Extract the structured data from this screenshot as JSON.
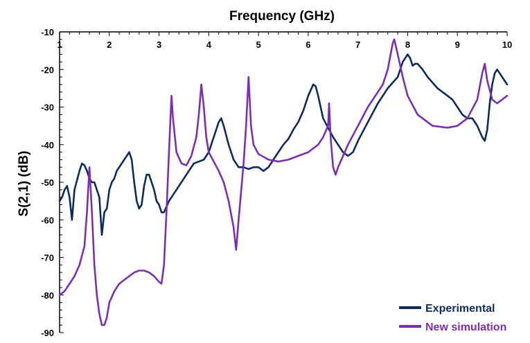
{
  "chart_data": {
    "type": "line",
    "xlabel": "Frequency (GHz)",
    "ylabel": "S(2,1) (dB)",
    "xlim": [
      1,
      10
    ],
    "ylim": [
      -90,
      -10
    ],
    "x_ticks": [
      "1",
      "2",
      "3",
      "4",
      "5",
      "6",
      "7",
      "8",
      "9",
      "10"
    ],
    "y_ticks": [
      "-10",
      "-20",
      "-30",
      "-40",
      "-50",
      "-60",
      "-70",
      "-80",
      "-90"
    ],
    "x_tick_values": [
      1,
      2,
      3,
      4,
      5,
      6,
      7,
      8,
      9,
      10
    ],
    "y_tick_values": [
      -10,
      -20,
      -30,
      -40,
      -50,
      -60,
      -70,
      -80,
      -90
    ],
    "x_axis_position": "top",
    "grid": false,
    "legend_position": "bottom-right",
    "series": [
      {
        "name": "Experimental",
        "color": "#0b2a5e",
        "points": [
          [
            1.0,
            -55
          ],
          [
            1.05,
            -54
          ],
          [
            1.1,
            -52
          ],
          [
            1.15,
            -51
          ],
          [
            1.2,
            -54
          ],
          [
            1.25,
            -60
          ],
          [
            1.3,
            -52
          ],
          [
            1.4,
            -47
          ],
          [
            1.45,
            -45
          ],
          [
            1.5,
            -45.5
          ],
          [
            1.55,
            -47
          ],
          [
            1.6,
            -49
          ],
          [
            1.65,
            -50
          ],
          [
            1.7,
            -50
          ],
          [
            1.75,
            -52
          ],
          [
            1.8,
            -54
          ],
          [
            1.85,
            -64
          ],
          [
            1.9,
            -58
          ],
          [
            1.95,
            -57
          ],
          [
            2.0,
            -52
          ],
          [
            2.05,
            -50
          ],
          [
            2.1,
            -49
          ],
          [
            2.15,
            -47
          ],
          [
            2.2,
            -46
          ],
          [
            2.3,
            -44
          ],
          [
            2.4,
            -42
          ],
          [
            2.45,
            -44
          ],
          [
            2.5,
            -50
          ],
          [
            2.55,
            -55
          ],
          [
            2.6,
            -57
          ],
          [
            2.65,
            -56
          ],
          [
            2.7,
            -51
          ],
          [
            2.75,
            -48
          ],
          [
            2.8,
            -48
          ],
          [
            2.85,
            -50
          ],
          [
            2.9,
            -52
          ],
          [
            2.95,
            -55
          ],
          [
            3.0,
            -56
          ],
          [
            3.05,
            -58
          ],
          [
            3.1,
            -58
          ],
          [
            3.2,
            -55
          ],
          [
            3.3,
            -53
          ],
          [
            3.4,
            -51
          ],
          [
            3.5,
            -49
          ],
          [
            3.6,
            -47
          ],
          [
            3.7,
            -45
          ],
          [
            3.8,
            -44.5
          ],
          [
            3.9,
            -44
          ],
          [
            4.0,
            -42
          ],
          [
            4.1,
            -38
          ],
          [
            4.2,
            -34
          ],
          [
            4.25,
            -33
          ],
          [
            4.3,
            -35
          ],
          [
            4.4,
            -40
          ],
          [
            4.5,
            -44
          ],
          [
            4.6,
            -46
          ],
          [
            4.7,
            -46
          ],
          [
            4.8,
            -46.5
          ],
          [
            4.9,
            -46
          ],
          [
            5.0,
            -46
          ],
          [
            5.1,
            -47
          ],
          [
            5.2,
            -46
          ],
          [
            5.3,
            -44
          ],
          [
            5.4,
            -42
          ],
          [
            5.5,
            -40
          ],
          [
            5.6,
            -38.5
          ],
          [
            5.7,
            -36
          ],
          [
            5.8,
            -34
          ],
          [
            5.9,
            -31
          ],
          [
            6.0,
            -27
          ],
          [
            6.1,
            -24
          ],
          [
            6.15,
            -24.5
          ],
          [
            6.2,
            -27
          ],
          [
            6.3,
            -33
          ],
          [
            6.4,
            -35.5
          ],
          [
            6.5,
            -38
          ],
          [
            6.6,
            -40
          ],
          [
            6.7,
            -42
          ],
          [
            6.8,
            -43
          ],
          [
            6.9,
            -42
          ],
          [
            7.0,
            -39
          ],
          [
            7.2,
            -34
          ],
          [
            7.4,
            -29
          ],
          [
            7.6,
            -25
          ],
          [
            7.8,
            -22
          ],
          [
            7.9,
            -18
          ],
          [
            8.0,
            -16
          ],
          [
            8.05,
            -17
          ],
          [
            8.1,
            -19
          ],
          [
            8.15,
            -18.5
          ],
          [
            8.2,
            -18.5
          ],
          [
            8.3,
            -20
          ],
          [
            8.4,
            -22
          ],
          [
            8.6,
            -25
          ],
          [
            8.8,
            -27
          ],
          [
            8.9,
            -28
          ],
          [
            9.0,
            -30
          ],
          [
            9.1,
            -32
          ],
          [
            9.2,
            -33
          ],
          [
            9.3,
            -33
          ],
          [
            9.4,
            -35
          ],
          [
            9.5,
            -38
          ],
          [
            9.55,
            -39
          ],
          [
            9.6,
            -36
          ],
          [
            9.65,
            -29
          ],
          [
            9.7,
            -24
          ],
          [
            9.75,
            -21
          ],
          [
            9.8,
            -20
          ],
          [
            9.85,
            -21
          ],
          [
            9.9,
            -22
          ],
          [
            9.95,
            -23
          ],
          [
            10.0,
            -24
          ]
        ]
      },
      {
        "name": "New simulation",
        "color": "#7b2fb0",
        "points": [
          [
            1.0,
            -80
          ],
          [
            1.1,
            -79
          ],
          [
            1.2,
            -77
          ],
          [
            1.3,
            -75
          ],
          [
            1.4,
            -72
          ],
          [
            1.5,
            -67
          ],
          [
            1.55,
            -58
          ],
          [
            1.6,
            -46
          ],
          [
            1.65,
            -58
          ],
          [
            1.7,
            -72
          ],
          [
            1.75,
            -80
          ],
          [
            1.8,
            -85
          ],
          [
            1.85,
            -88
          ],
          [
            1.9,
            -88
          ],
          [
            1.95,
            -86
          ],
          [
            2.0,
            -82
          ],
          [
            2.1,
            -79
          ],
          [
            2.2,
            -77
          ],
          [
            2.3,
            -76
          ],
          [
            2.4,
            -75
          ],
          [
            2.5,
            -74
          ],
          [
            2.6,
            -73.5
          ],
          [
            2.7,
            -73.5
          ],
          [
            2.8,
            -74
          ],
          [
            2.9,
            -75
          ],
          [
            3.0,
            -76.5
          ],
          [
            3.05,
            -77
          ],
          [
            3.1,
            -72
          ],
          [
            3.15,
            -58
          ],
          [
            3.2,
            -42
          ],
          [
            3.25,
            -27
          ],
          [
            3.28,
            -33
          ],
          [
            3.35,
            -42
          ],
          [
            3.45,
            -45
          ],
          [
            3.55,
            -45.5
          ],
          [
            3.65,
            -43
          ],
          [
            3.75,
            -38
          ],
          [
            3.8,
            -32
          ],
          [
            3.85,
            -24
          ],
          [
            3.9,
            -30
          ],
          [
            3.95,
            -38
          ],
          [
            4.0,
            -42
          ],
          [
            4.2,
            -47
          ],
          [
            4.3,
            -50
          ],
          [
            4.4,
            -55
          ],
          [
            4.5,
            -62
          ],
          [
            4.55,
            -68
          ],
          [
            4.6,
            -60
          ],
          [
            4.7,
            -45
          ],
          [
            4.75,
            -35
          ],
          [
            4.8,
            -22
          ],
          [
            4.85,
            -35
          ],
          [
            4.9,
            -40
          ],
          [
            5.0,
            -42.5
          ],
          [
            5.2,
            -44
          ],
          [
            5.4,
            -44.5
          ],
          [
            5.6,
            -44
          ],
          [
            5.8,
            -43
          ],
          [
            6.0,
            -42
          ],
          [
            6.2,
            -40
          ],
          [
            6.3,
            -38
          ],
          [
            6.4,
            -35
          ],
          [
            6.42,
            -29
          ],
          [
            6.45,
            -38
          ],
          [
            6.5,
            -46
          ],
          [
            6.55,
            -48
          ],
          [
            6.6,
            -46
          ],
          [
            6.8,
            -40
          ],
          [
            7.0,
            -35
          ],
          [
            7.2,
            -30
          ],
          [
            7.4,
            -26
          ],
          [
            7.5,
            -24
          ],
          [
            7.6,
            -20
          ],
          [
            7.7,
            -13
          ],
          [
            7.73,
            -12
          ],
          [
            7.8,
            -16
          ],
          [
            7.9,
            -22
          ],
          [
            8.0,
            -27
          ],
          [
            8.2,
            -32
          ],
          [
            8.5,
            -35
          ],
          [
            8.8,
            -35.5
          ],
          [
            9.0,
            -35
          ],
          [
            9.2,
            -33
          ],
          [
            9.4,
            -28
          ],
          [
            9.5,
            -21
          ],
          [
            9.55,
            -18.5
          ],
          [
            9.6,
            -23
          ],
          [
            9.7,
            -28
          ],
          [
            9.8,
            -29
          ],
          [
            9.9,
            -28
          ],
          [
            10.0,
            -27
          ]
        ]
      }
    ]
  }
}
